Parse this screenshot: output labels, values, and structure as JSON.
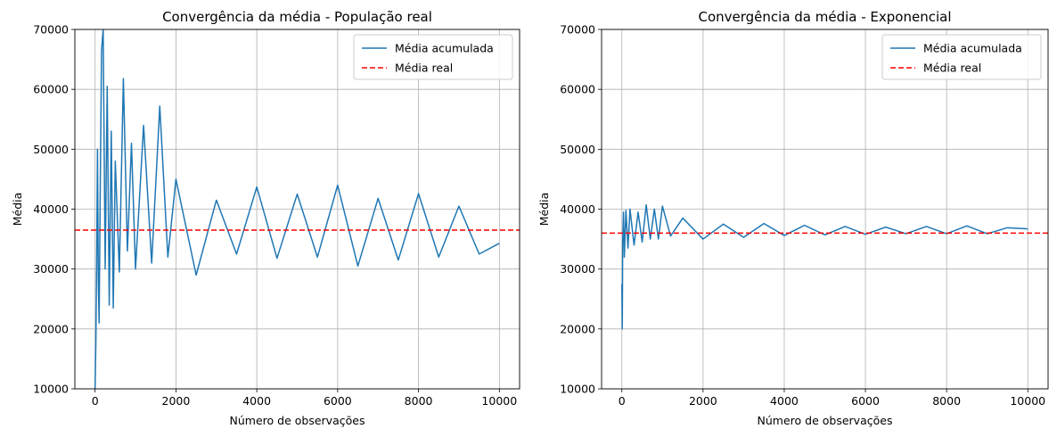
{
  "chart_data": [
    {
      "type": "line",
      "title": "Convergência da média - População real",
      "xlabel": "Número de observações",
      "ylabel": "Média",
      "xlim": [
        -500,
        10500
      ],
      "ylim": [
        10000,
        70000
      ],
      "xticks": [
        0,
        2000,
        4000,
        6000,
        8000,
        10000
      ],
      "yticks": [
        10000,
        20000,
        30000,
        40000,
        50000,
        60000,
        70000
      ],
      "grid": true,
      "legend_position": "top-right",
      "series": [
        {
          "name": "Média acumulada",
          "style": "solid",
          "color": "#1f77b4",
          "x": [
            0,
            20,
            40,
            60,
            80,
            100,
            130,
            160,
            200,
            250,
            300,
            350,
            400,
            450,
            500,
            600,
            700,
            800,
            900,
            1000,
            1200,
            1400,
            1600,
            1800,
            2000,
            2500,
            3000,
            3500,
            4000,
            4500,
            5000,
            5500,
            6000,
            6500,
            7000,
            7500,
            8000,
            8500,
            9000,
            9500,
            10000
          ],
          "values": [
            10000,
            18000,
            32000,
            50000,
            28000,
            21000,
            45000,
            66500,
            70000,
            30000,
            60500,
            24000,
            53000,
            23500,
            48000,
            29500,
            61800,
            33000,
            51000,
            30000,
            54000,
            31000,
            57200,
            32000,
            45000,
            29000,
            41500,
            32500,
            43700,
            31800,
            42500,
            32000,
            44000,
            30500,
            41800,
            31500,
            42600,
            32000,
            40500,
            32500,
            34300
          ]
        },
        {
          "name": "Média real",
          "style": "dashed",
          "color": "#ff0000",
          "x": [
            -500,
            10500
          ],
          "values": [
            36500,
            36500
          ]
        }
      ]
    },
    {
      "type": "line",
      "title": "Convergência da média - Exponencial",
      "xlabel": "Número de observações",
      "ylabel": "Média",
      "xlim": [
        -500,
        10500
      ],
      "ylim": [
        10000,
        70000
      ],
      "xticks": [
        0,
        2000,
        4000,
        6000,
        8000,
        10000
      ],
      "yticks": [
        10000,
        20000,
        30000,
        40000,
        50000,
        60000,
        70000
      ],
      "grid": true,
      "legend_position": "top-right",
      "series": [
        {
          "name": "Média acumulada",
          "style": "solid",
          "color": "#1f77b4",
          "x": [
            0,
            10,
            20,
            40,
            60,
            100,
            150,
            200,
            300,
            400,
            500,
            600,
            700,
            800,
            900,
            1000,
            1200,
            1500,
            2000,
            2500,
            3000,
            3500,
            4000,
            4500,
            5000,
            5500,
            6000,
            6500,
            7000,
            7500,
            8000,
            8500,
            9000,
            9500,
            10000
          ],
          "values": [
            27500,
            20000,
            34500,
            39500,
            32000,
            39800,
            33500,
            40000,
            34000,
            39500,
            34500,
            40700,
            35000,
            40000,
            35000,
            40500,
            35500,
            38500,
            35000,
            37500,
            35300,
            37600,
            35600,
            37300,
            35700,
            37100,
            35800,
            37000,
            35900,
            37100,
            35900,
            37200,
            35900,
            36900,
            36700
          ]
        },
        {
          "name": "Média real",
          "style": "dashed",
          "color": "#ff0000",
          "x": [
            -500,
            10500
          ],
          "values": [
            36000,
            36000
          ]
        }
      ]
    }
  ]
}
